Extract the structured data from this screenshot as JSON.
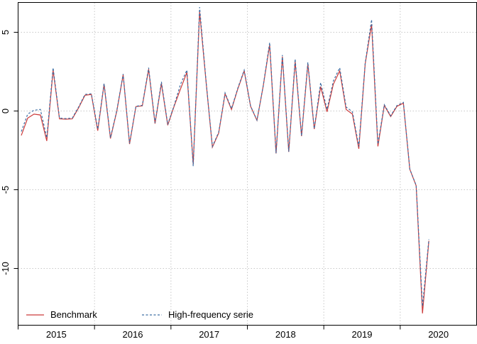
{
  "chart_data": {
    "type": "line",
    "title": "",
    "xlabel": "",
    "ylabel": "",
    "frequency": "monthly",
    "x_start": "2015-01",
    "x_end": "2020-05",
    "x_tick_labels": [
      "2015",
      "2016",
      "2017",
      "2018",
      "2019",
      "2020"
    ],
    "x_tick_years": [
      2015,
      2016,
      2017,
      2018,
      2019,
      2020
    ],
    "y_tick_labels": [
      "5",
      "0",
      "-5",
      "-10"
    ],
    "y_ticks": [
      5,
      0,
      -5,
      -10
    ],
    "ylim": [
      -13.6,
      6.9
    ],
    "xlim_years": [
      2015.0,
      2021.0
    ],
    "grid": "dotted",
    "grid_color": "#c8c8c8",
    "axis_color": "#000000",
    "legend_position": "bottom-left-inside",
    "series": [
      {
        "name": "Benchmark",
        "color": "#cc3b3b",
        "style": "solid",
        "values": [
          -1.55,
          -0.45,
          -0.2,
          -0.25,
          -1.9,
          2.6,
          -0.5,
          -0.52,
          -0.5,
          0.2,
          1.0,
          1.05,
          -1.25,
          1.7,
          -1.75,
          0.0,
          2.3,
          -2.1,
          0.28,
          0.33,
          2.65,
          -0.8,
          1.75,
          -0.9,
          0.3,
          1.4,
          2.45,
          -3.4,
          6.3,
          1.9,
          -2.3,
          -1.4,
          1.1,
          0.1,
          1.4,
          2.55,
          0.3,
          -0.6,
          1.6,
          4.2,
          -2.7,
          3.45,
          -2.6,
          3.15,
          -1.6,
          3.0,
          -1.15,
          1.55,
          -0.05,
          1.7,
          2.55,
          0.1,
          -0.2,
          -2.4,
          3.0,
          5.5,
          -2.25,
          0.35,
          -0.35,
          0.3,
          0.5,
          -3.7,
          -4.75,
          -12.85,
          -8.25
        ]
      },
      {
        "name": "High-frequency serie",
        "color": "#3d6fa5",
        "style": "dashed",
        "values": [
          -1.3,
          -0.2,
          0.05,
          0.1,
          -1.7,
          2.75,
          -0.45,
          -0.48,
          -0.45,
          0.25,
          1.05,
          1.1,
          -1.15,
          1.75,
          -1.7,
          0.05,
          2.35,
          -2.05,
          0.3,
          0.36,
          2.75,
          -0.75,
          1.85,
          -0.85,
          0.35,
          1.7,
          2.6,
          -3.5,
          6.6,
          1.95,
          -2.25,
          -1.35,
          1.15,
          0.15,
          1.45,
          2.6,
          0.32,
          -0.58,
          1.62,
          4.35,
          -2.68,
          3.55,
          -2.58,
          3.3,
          -1.58,
          3.1,
          -1.12,
          1.8,
          0.1,
          1.9,
          2.75,
          0.25,
          -0.05,
          -2.25,
          3.05,
          5.8,
          -2.1,
          0.4,
          -0.3,
          0.35,
          0.55,
          -3.68,
          -4.72,
          -12.4,
          -8.15
        ]
      }
    ]
  }
}
